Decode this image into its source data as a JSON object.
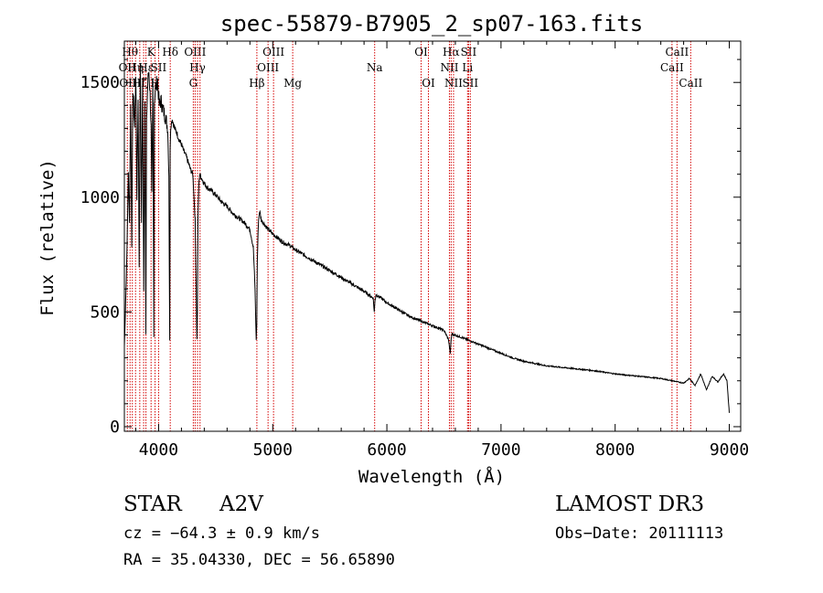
{
  "chart_data": {
    "type": "line",
    "title": "spec-55879-B7905_2_sp07-163.fits",
    "xlabel": "Wavelength (Å)",
    "ylabel": "Flux (relative)",
    "xlim": [
      3700,
      9100
    ],
    "ylim": [
      -20,
      1680
    ],
    "xticks": [
      4000,
      5000,
      6000,
      7000,
      8000,
      9000
    ],
    "yticks": [
      0,
      500,
      1000,
      1500
    ],
    "grid": false,
    "series": [
      {
        "name": "flux",
        "x": [
          3700,
          3720,
          3735,
          3745,
          3755,
          3765,
          3775,
          3790,
          3800,
          3810,
          3820,
          3830,
          3840,
          3850,
          3860,
          3870,
          3880,
          3888,
          3895,
          3905,
          3915,
          3925,
          3935,
          3940,
          3950,
          3958,
          3963,
          3968,
          3975,
          3985,
          3995,
          4005,
          4020,
          4040,
          4060,
          4080,
          4090,
          4097,
          4101,
          4105,
          4110,
          4120,
          4140,
          4160,
          4180,
          4200,
          4220,
          4240,
          4260,
          4280,
          4300,
          4320,
          4330,
          4335,
          4340,
          4345,
          4352,
          4360,
          4380,
          4400,
          4430,
          4460,
          4500,
          4550,
          4600,
          4650,
          4700,
          4750,
          4800,
          4830,
          4845,
          4855,
          4860,
          4865,
          4875,
          4885,
          4900,
          4930,
          4960,
          5000,
          5050,
          5100,
          5150,
          5200,
          5300,
          5400,
          5500,
          5600,
          5700,
          5800,
          5880,
          5890,
          5896,
          5905,
          5950,
          6000,
          6100,
          6200,
          6300,
          6400,
          6500,
          6540,
          6555,
          6563,
          6570,
          6590,
          6650,
          6700,
          6800,
          6900,
          7000,
          7100,
          7200,
          7400,
          7600,
          7800,
          8000,
          8200,
          8400,
          8500,
          8600,
          8650,
          8700,
          8750,
          8800,
          8850,
          8900,
          8950,
          8980,
          9000
        ],
        "y": [
          350,
          700,
          1100,
          900,
          1400,
          800,
          1480,
          1300,
          1550,
          1000,
          1450,
          700,
          1600,
          900,
          1500,
          600,
          1450,
          400,
          1350,
          1500,
          1550,
          1450,
          1300,
          1000,
          1500,
          400,
          1420,
          1450,
          1480,
          1500,
          1480,
          1400,
          1420,
          1380,
          1350,
          1300,
          1100,
          380,
          1200,
          1300,
          1320,
          1340,
          1300,
          1280,
          1250,
          1230,
          1200,
          1180,
          1150,
          1120,
          1100,
          900,
          600,
          380,
          500,
          900,
          1050,
          1100,
          1080,
          1060,
          1040,
          1030,
          1010,
          980,
          960,
          930,
          910,
          890,
          860,
          780,
          600,
          380,
          450,
          720,
          900,
          940,
          900,
          880,
          860,
          840,
          820,
          800,
          790,
          770,
          740,
          710,
          680,
          650,
          620,
          590,
          560,
          500,
          550,
          575,
          560,
          540,
          510,
          480,
          460,
          440,
          420,
          380,
          320,
          380,
          405,
          400,
          390,
          380,
          360,
          340,
          320,
          300,
          285,
          265,
          255,
          245,
          230,
          220,
          210,
          200,
          190,
          210,
          180,
          230,
          160,
          220,
          195,
          230,
          200,
          60
        ]
      }
    ],
    "line_markers": [
      {
        "wl": 3726,
        "label": "OII",
        "row": 2
      },
      {
        "wl": 3750,
        "label": "Hθ",
        "row": 1
      },
      {
        "wl": 3770,
        "label": "OIIII",
        "row": 3
      },
      {
        "wl": 3798,
        "label": "Hη",
        "row": 2
      },
      {
        "wl": 3835,
        "label": "Hζ",
        "row": 3
      },
      {
        "wl": 3869,
        "label": "",
        "row": 0
      },
      {
        "wl": 3889,
        "label": "Hε",
        "row": 2
      },
      {
        "wl": 3934,
        "label": "K",
        "row": 1
      },
      {
        "wl": 3969,
        "label": "H",
        "row": 3
      },
      {
        "wl": 4000,
        "label": "SII",
        "row": 2
      },
      {
        "wl": 4102,
        "label": "Hδ",
        "row": 1
      },
      {
        "wl": 4304,
        "label": "G",
        "row": 3
      },
      {
        "wl": 4320,
        "label": "OIII",
        "row": 1
      },
      {
        "wl": 4341,
        "label": "Hγ",
        "row": 2
      },
      {
        "wl": 4363,
        "label": "",
        "row": 0
      },
      {
        "wl": 4861,
        "label": "Hβ",
        "row": 3
      },
      {
        "wl": 4959,
        "label": "OIII",
        "row": 2
      },
      {
        "wl": 5007,
        "label": "OIII",
        "row": 1
      },
      {
        "wl": 5175,
        "label": "Mg",
        "row": 3
      },
      {
        "wl": 5893,
        "label": "Na",
        "row": 2
      },
      {
        "wl": 6300,
        "label": "OI",
        "row": 1
      },
      {
        "wl": 6364,
        "label": "OI",
        "row": 3
      },
      {
        "wl": 6548,
        "label": "NII",
        "row": 2
      },
      {
        "wl": 6563,
        "label": "Hα",
        "row": 1
      },
      {
        "wl": 6584,
        "label": "NII",
        "row": 3
      },
      {
        "wl": 6707,
        "label": "Li",
        "row": 2
      },
      {
        "wl": 6716,
        "label": "SII",
        "row": 1
      },
      {
        "wl": 6731,
        "label": "SII",
        "row": 3
      },
      {
        "wl": 8498,
        "label": "CaII",
        "row": 2
      },
      {
        "wl": 8542,
        "label": "CaII",
        "row": 1
      },
      {
        "wl": 8662,
        "label": "CaII",
        "row": 3
      }
    ]
  },
  "info": {
    "class": "STAR",
    "subclass": "A2V",
    "survey": "LAMOST DR3",
    "cz": "cz = −64.3 ± 0.9 km/s",
    "obs_date": "Obs−Date: 20111113",
    "radec": "RA =  35.04330, DEC =  56.65890"
  },
  "colors": {
    "line": "#000000",
    "marker": "#d40000",
    "background": "#ffffff"
  }
}
